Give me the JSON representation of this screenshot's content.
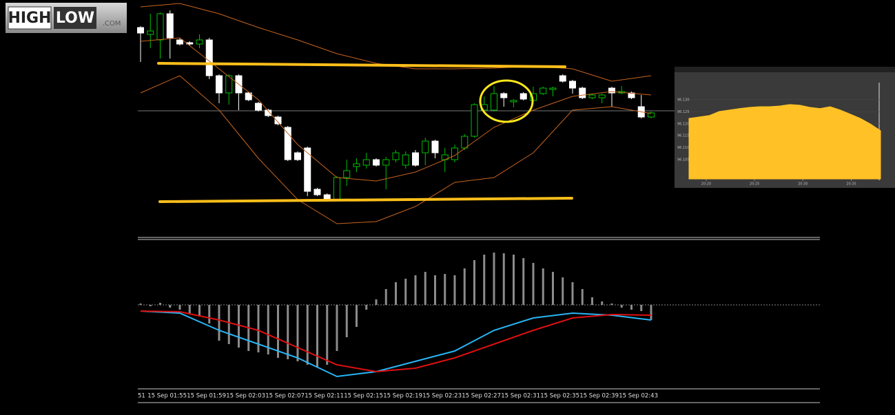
{
  "logo": {
    "high": "HIGH",
    "low": "LOW",
    "com": ".COM"
  },
  "chart_data": [
    {
      "type": "candlestick",
      "ylim": [
        0,
        340
      ],
      "up_color": "#00c000",
      "down_color": "#ffffff",
      "open": [
        300,
        290,
        282,
        320,
        282,
        278,
        276,
        282,
        230,
        205,
        230,
        205,
        190,
        180,
        170,
        155,
        118,
        125,
        65,
        57,
        50,
        82,
        98,
        100,
        108,
        100,
        108,
        100,
        118,
        118,
        135,
        108,
        108,
        125,
        142,
        180,
        180,
        204,
        192,
        204,
        194,
        204,
        210,
        230,
        222,
        212,
        198,
        198,
        212,
        205,
        205,
        185,
        170
      ],
      "high": [
        302,
        320,
        322,
        325,
        284,
        280,
        290,
        285,
        232,
        232,
        232,
        207,
        192,
        182,
        172,
        157,
        120,
        127,
        67,
        59,
        84,
        108,
        110,
        118,
        110,
        112,
        122,
        120,
        122,
        140,
        137,
        125,
        130,
        145,
        190,
        200,
        215,
        206,
        196,
        206,
        214,
        214,
        214,
        232,
        224,
        214,
        204,
        204,
        214,
        215,
        207,
        202,
        178
      ],
      "low": [
        250,
        270,
        255,
        255,
        274,
        274,
        270,
        225,
        190,
        188,
        180,
        193,
        178,
        170,
        158,
        106,
        106,
        55,
        55,
        48,
        48,
        70,
        90,
        95,
        98,
        65,
        104,
        95,
        98,
        100,
        110,
        90,
        104,
        122,
        140,
        175,
        178,
        185,
        184,
        194,
        192,
        202,
        200,
        220,
        204,
        196,
        196,
        190,
        185,
        203,
        196,
        168,
        168
      ],
      "close": [
        292,
        295,
        320,
        285,
        276,
        276,
        282,
        230,
        205,
        230,
        205,
        195,
        180,
        172,
        160,
        108,
        108,
        62,
        57,
        50,
        82,
        92,
        102,
        108,
        100,
        108,
        118,
        115,
        100,
        135,
        118,
        115,
        125,
        142,
        188,
        188,
        204,
        198,
        194,
        196,
        204,
        212,
        212,
        222,
        212,
        198,
        202,
        202,
        205,
        207,
        198,
        170,
        176
      ],
      "bands": {
        "x": [
          0,
          4,
          8,
          12,
          16,
          20,
          24,
          28,
          32,
          36,
          40,
          44,
          48,
          52
        ],
        "color": "#c8641e",
        "series": [
          {
            "values": [
              330,
              335,
              320,
              300,
              282,
              262,
              248,
              240,
              240,
              241,
              244,
              240,
              222,
              230
            ]
          },
          {
            "values": [
              280,
              285,
              240,
              195,
              130,
              82,
              77,
              90,
              114,
              155,
              180,
              200,
              207,
              202
            ]
          },
          {
            "values": [
              205,
              230,
              180,
              110,
              50,
              15,
              18,
              40,
              75,
              82,
              118,
              180,
              185,
              175
            ]
          }
        ]
      }
    },
    {
      "type": "macd",
      "ylim": [
        -117,
        93
      ],
      "categories": [
        "51",
        "15 Sep 01:55",
        null,
        null,
        null,
        "15 Sep 01:59",
        null,
        null,
        null,
        "15 Sep 02:03",
        null,
        null,
        null,
        "15 Sep 02:07",
        null,
        null,
        null,
        "15 Sep 02:11",
        null,
        null,
        null,
        "15 Sep 02:15",
        null,
        null,
        null,
        "15 Sep 02:19",
        null,
        null,
        null,
        "15 Sep 02:23",
        null,
        null,
        null,
        "15 Sep 02:27",
        null,
        null,
        null,
        "15 Sep 02:31",
        null,
        null,
        null,
        "15 Sep 02:35",
        null,
        null,
        null,
        "15 Sep 02:39",
        null,
        null,
        null,
        "15 Sep 02:43",
        null,
        null,
        null
      ],
      "histogram": {
        "color": "#8c8c8c",
        "values": [
          2,
          -2,
          3,
          -4,
          -7,
          -12,
          -17,
          -27,
          -52,
          -57,
          -62,
          -67,
          -69,
          -72,
          -77,
          -79,
          -82,
          -87,
          -90,
          -87,
          -67,
          -47,
          -32,
          -7,
          8,
          23,
          33,
          38,
          43,
          48,
          43,
          45,
          43,
          53,
          65,
          73,
          76,
          75,
          73,
          68,
          61,
          53,
          48,
          40,
          33,
          23,
          11,
          5,
          2,
          -4,
          -7,
          -9,
          -22
        ]
      },
      "x": [
        0,
        4,
        8,
        12,
        16,
        20,
        24,
        28,
        32,
        36,
        40,
        44,
        48,
        52
      ],
      "series": [
        {
          "color": "#29b6f6",
          "values": [
            -9,
            -12,
            -37,
            -57,
            -77,
            -104,
            -97,
            -82,
            -67,
            -37,
            -19,
            -12,
            -15,
            -22
          ]
        },
        {
          "color": "#e01010",
          "values": [
            -9,
            -10,
            -22,
            -37,
            -62,
            -87,
            -97,
            -92,
            -77,
            -57,
            -37,
            -19,
            -14,
            -15
          ]
        }
      ]
    },
    {
      "type": "area",
      "color": "#ffc125",
      "x": [
        0,
        1,
        2,
        3,
        4,
        5,
        6,
        7,
        8,
        9,
        10,
        11,
        12,
        13,
        14,
        15,
        16,
        17,
        18,
        19
      ],
      "values": [
        96.1222,
        96.1228,
        96.1234,
        96.1251,
        96.1257,
        96.1263,
        96.1268,
        96.1271,
        96.1271,
        96.1274,
        96.128,
        96.1277,
        96.1268,
        96.1263,
        96.1271,
        96.1257,
        96.124,
        96.1222,
        96.1199,
        96.1171
      ],
      "xlim": [
        0,
        19
      ],
      "ylim": [
        96.097,
        96.14
      ],
      "yticks": [
        {
          "value": 96.13,
          "label": "96.130"
        },
        {
          "value": 96.125,
          "label": "96.125"
        },
        {
          "value": 96.12,
          "label": "96.120"
        },
        {
          "value": 96.115,
          "label": "96.115"
        },
        {
          "value": 96.11,
          "label": "96.110"
        },
        {
          "value": 96.105,
          "label": "96.105"
        }
      ],
      "xticks": [
        {
          "value": 1.7,
          "label": "20:20"
        },
        {
          "value": 6.5,
          "label": "20:25"
        },
        {
          "value": 11.3,
          "label": "20:30"
        },
        {
          "value": 16.1,
          "label": "20:35"
        }
      ]
    }
  ]
}
